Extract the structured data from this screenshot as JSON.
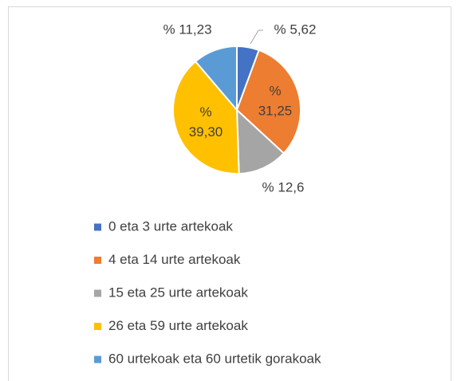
{
  "chart_data": {
    "type": "pie",
    "categories": [
      "0 eta 3 urte artekoak",
      "4 eta 14 urte artekoak",
      "15 eta 25 urte artekoak",
      "26 eta 59 urte artekoak",
      "60 urtekoak eta 60 urtetik gorakoak"
    ],
    "values": [
      5.62,
      31.25,
      12.6,
      39.3,
      11.23
    ],
    "value_labels": [
      "% 5,62",
      "% 31,25",
      "% 12,6",
      "% 39,30",
      "% 11,23"
    ],
    "colors": [
      "#4472c4",
      "#ed7d31",
      "#a5a5a5",
      "#ffc000",
      "#5b9bd5"
    ]
  }
}
